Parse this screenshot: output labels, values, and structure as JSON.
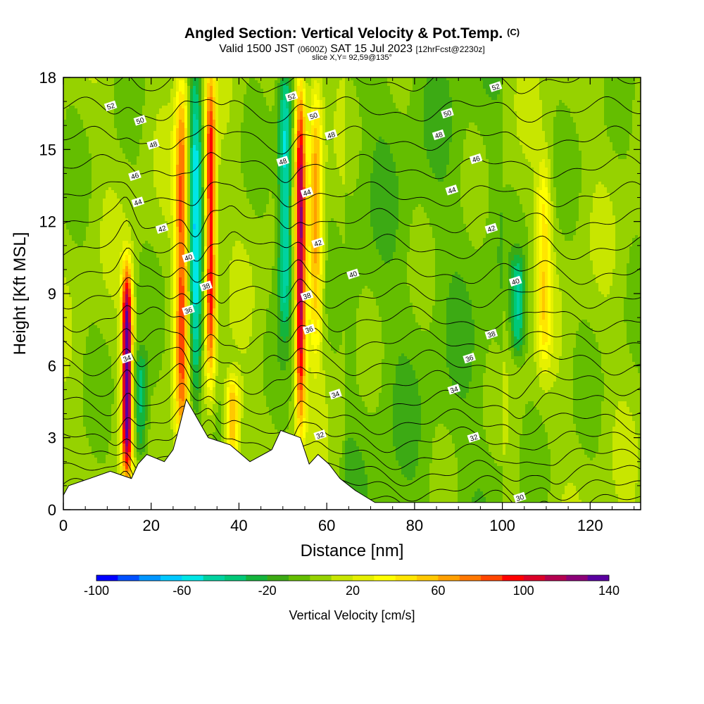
{
  "header": {
    "title": "Angled Section: Vertical Velocity & Pot.Temp.",
    "copyright": "(C)",
    "valid_main": "Valid 1500 JST",
    "valid_utc": "(0600Z)",
    "valid_date": "SAT 15 Jul 2023",
    "forecast": "[12hrFcst@2230z]",
    "slice": "slice X,Y= 92,59@135°"
  },
  "chart_data": {
    "type": "heatmap",
    "title": "Angled Section: Vertical Velocity & Pot.Temp.",
    "xlabel": "Distance [nm]",
    "ylabel": "Height [Kft MSL]",
    "xlim": [
      0,
      131.5
    ],
    "ylim": [
      0,
      18
    ],
    "x_ticks": [
      0,
      20,
      40,
      60,
      80,
      100,
      120
    ],
    "y_ticks": [
      0,
      3,
      6,
      9,
      12,
      15,
      18
    ],
    "fill_variable": "Vertical Velocity [cm/s]",
    "contour_variable": "Potential Temperature (C)",
    "colorbar": {
      "title": "Vertical Velocity [cm/s]",
      "min": -100,
      "max": 140,
      "step": 10,
      "tick_labels": [
        -100,
        -60,
        -20,
        20,
        60,
        100,
        140
      ],
      "colors": [
        "#0000ff",
        "#0050ff",
        "#0096ff",
        "#00c8ff",
        "#00e6e6",
        "#00d2a0",
        "#00c878",
        "#14b43c",
        "#3caa14",
        "#64be00",
        "#96d200",
        "#c8e600",
        "#e6f000",
        "#ffff00",
        "#ffe600",
        "#ffc800",
        "#ffa000",
        "#ff7800",
        "#ff4600",
        "#ff0000",
        "#dc0028",
        "#b40050",
        "#8c0078",
        "#5a00a0"
      ]
    },
    "velocity_features": [
      {
        "center_x": 14.5,
        "bottom": 2.0,
        "top": 9.5,
        "peak": 140,
        "kind": "updraft"
      },
      {
        "center_x": 17.5,
        "bottom": 2.5,
        "top": 6.0,
        "peak": -40,
        "kind": "downdraft"
      },
      {
        "center_x": 27.0,
        "bottom": 3.0,
        "top": 17.5,
        "peak": 80,
        "kind": "updraft"
      },
      {
        "center_x": 30.0,
        "bottom": 4.5,
        "top": 18.0,
        "peak": -60,
        "kind": "downdraft"
      },
      {
        "center_x": 33.5,
        "bottom": 6.0,
        "top": 17.5,
        "peak": 100,
        "kind": "updraft"
      },
      {
        "center_x": 38.5,
        "bottom": 2.5,
        "top": 5.0,
        "peak": 60,
        "kind": "updraft"
      },
      {
        "center_x": 50.5,
        "bottom": 8.0,
        "top": 18.0,
        "peak": -60,
        "kind": "downdraft"
      },
      {
        "center_x": 54.0,
        "bottom": 4.0,
        "top": 17.5,
        "peak": 110,
        "kind": "updraft"
      },
      {
        "center_x": 57.5,
        "bottom": 7.0,
        "top": 17.5,
        "peak": 60,
        "kind": "updraft"
      },
      {
        "center_x": 103.5,
        "bottom": 7.0,
        "top": 10.0,
        "peak": -40,
        "kind": "downdraft"
      },
      {
        "center_x": 109.5,
        "bottom": 6.5,
        "top": 14.0,
        "peak": 40,
        "kind": "updraft"
      }
    ],
    "terrain": [
      {
        "x": 0,
        "h": 0.6
      },
      {
        "x": 1.2,
        "h": 1.0
      },
      {
        "x": 6.0,
        "h": 1.3
      },
      {
        "x": 10.7,
        "h": 1.6
      },
      {
        "x": 15.5,
        "h": 1.3
      },
      {
        "x": 17.0,
        "h": 1.9
      },
      {
        "x": 19.0,
        "h": 2.3
      },
      {
        "x": 23.0,
        "h": 2.0
      },
      {
        "x": 25.0,
        "h": 2.5
      },
      {
        "x": 26.5,
        "h": 3.5
      },
      {
        "x": 28.0,
        "h": 4.6
      },
      {
        "x": 30.5,
        "h": 3.8
      },
      {
        "x": 33.0,
        "h": 3.0
      },
      {
        "x": 38.0,
        "h": 2.7
      },
      {
        "x": 42.5,
        "h": 2.0
      },
      {
        "x": 47.5,
        "h": 2.5
      },
      {
        "x": 49.5,
        "h": 3.3
      },
      {
        "x": 54.0,
        "h": 3.0
      },
      {
        "x": 56.0,
        "h": 1.9
      },
      {
        "x": 58.0,
        "h": 2.3
      },
      {
        "x": 60.5,
        "h": 1.9
      },
      {
        "x": 63.0,
        "h": 1.3
      },
      {
        "x": 66.5,
        "h": 0.8
      },
      {
        "x": 71.0,
        "h": 0.3
      },
      {
        "x": 131.5,
        "h": 0.3
      }
    ],
    "theta_labels": [
      {
        "x": 10.8,
        "y": 16.8,
        "v": "52"
      },
      {
        "x": 52.0,
        "y": 17.2,
        "v": "52"
      },
      {
        "x": 98.5,
        "y": 17.6,
        "v": "52"
      },
      {
        "x": 17.5,
        "y": 16.2,
        "v": "50"
      },
      {
        "x": 57.0,
        "y": 16.4,
        "v": "50"
      },
      {
        "x": 87.5,
        "y": 16.5,
        "v": "50"
      },
      {
        "x": 20.5,
        "y": 15.2,
        "v": "48"
      },
      {
        "x": 50.0,
        "y": 14.5,
        "v": "48"
      },
      {
        "x": 61.0,
        "y": 15.6,
        "v": "48"
      },
      {
        "x": 85.5,
        "y": 15.6,
        "v": "48"
      },
      {
        "x": 16.3,
        "y": 13.9,
        "v": "46"
      },
      {
        "x": 94.0,
        "y": 14.6,
        "v": "46"
      },
      {
        "x": 17.0,
        "y": 12.8,
        "v": "44"
      },
      {
        "x": 55.5,
        "y": 13.2,
        "v": "44"
      },
      {
        "x": 88.5,
        "y": 13.3,
        "v": "44"
      },
      {
        "x": 22.5,
        "y": 11.7,
        "v": "42"
      },
      {
        "x": 58.0,
        "y": 11.1,
        "v": "42"
      },
      {
        "x": 97.5,
        "y": 11.7,
        "v": "42"
      },
      {
        "x": 28.5,
        "y": 10.5,
        "v": "40"
      },
      {
        "x": 66.0,
        "y": 9.8,
        "v": "40"
      },
      {
        "x": 103.0,
        "y": 9.5,
        "v": "40"
      },
      {
        "x": 32.5,
        "y": 9.3,
        "v": "38"
      },
      {
        "x": 55.5,
        "y": 8.9,
        "v": "38"
      },
      {
        "x": 97.5,
        "y": 7.3,
        "v": "38"
      },
      {
        "x": 28.5,
        "y": 8.3,
        "v": "36"
      },
      {
        "x": 56.0,
        "y": 7.5,
        "v": "36"
      },
      {
        "x": 92.5,
        "y": 6.3,
        "v": "36"
      },
      {
        "x": 14.5,
        "y": 6.3,
        "v": "34"
      },
      {
        "x": 62.0,
        "y": 4.8,
        "v": "34"
      },
      {
        "x": 89.0,
        "y": 5.0,
        "v": "34"
      },
      {
        "x": 58.5,
        "y": 3.1,
        "v": "32"
      },
      {
        "x": 93.5,
        "y": 3.0,
        "v": "32"
      },
      {
        "x": 104.0,
        "y": 0.5,
        "v": "30"
      }
    ]
  }
}
